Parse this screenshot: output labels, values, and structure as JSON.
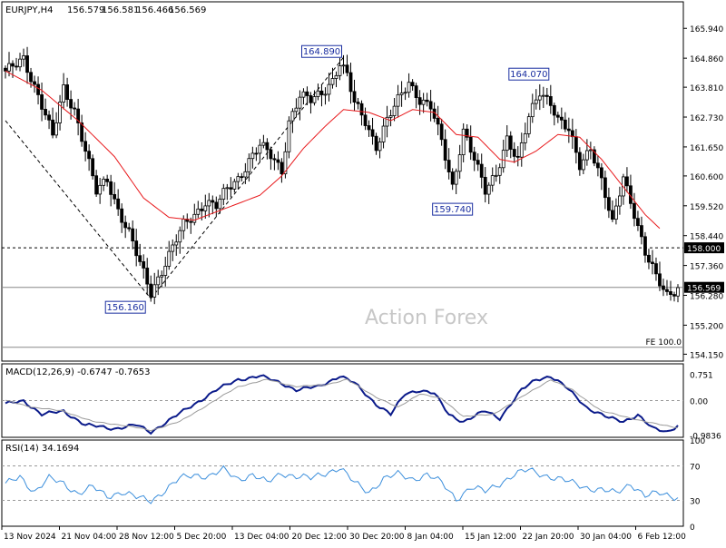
{
  "header": {
    "symbol": "EURJPY,H4",
    "open": "156.579",
    "high": "156.581",
    "low": "156.466",
    "close": "156.569"
  },
  "watermark": "Action Forex",
  "colors": {
    "candle": "#000000",
    "ma": "#e8191c",
    "macd": "#0a1a8a",
    "signal": "#9a9a9a",
    "rsi": "#3c8fdc",
    "grid": "#999999",
    "price_label_bg": "#ffffff"
  },
  "chart_data": [
    {
      "type": "candlestick",
      "panel": "price",
      "ylim": [
        153.9,
        166.9
      ],
      "y_ticks": [
        "165.940",
        "164.860",
        "163.810",
        "162.730",
        "161.650",
        "160.600",
        "159.520",
        "158.440",
        "157.360",
        "156.280",
        "155.200",
        "154.150"
      ],
      "y_tick_values": [
        165.94,
        164.86,
        163.81,
        162.73,
        161.65,
        160.6,
        159.52,
        158.44,
        157.36,
        156.28,
        155.2,
        154.15
      ],
      "x_labels": [
        "13 Nov 2024",
        "21 Nov 04:00",
        "28 Nov 12:00",
        "5 Dec 20:00",
        "13 Dec 04:00",
        "20 Dec 12:00",
        "30 Dec 20:00",
        "8 Jan 04:00",
        "15 Jan 12:00",
        "22 Jan 20:00",
        "30 Jan 04:00",
        "6 Feb 12:00"
      ],
      "close_path_anchors": [
        [
          0,
          164.3
        ],
        [
          5,
          164.9
        ],
        [
          9,
          163.5
        ],
        [
          13,
          162.0
        ],
        [
          16,
          163.8
        ],
        [
          19,
          163.0
        ],
        [
          22,
          161.5
        ],
        [
          25,
          160.0
        ],
        [
          28,
          160.5
        ],
        [
          31,
          159.4
        ],
        [
          34,
          158.5
        ],
        [
          37,
          157.4
        ],
        [
          40,
          156.4
        ],
        [
          43,
          157.2
        ],
        [
          46,
          158.0
        ],
        [
          49,
          158.8
        ],
        [
          52,
          159.2
        ],
        [
          55,
          159.7
        ],
        [
          58,
          159.5
        ],
        [
          61,
          160.1
        ],
        [
          64,
          160.5
        ],
        [
          67,
          161.2
        ],
        [
          70,
          161.7
        ],
        [
          73,
          161.3
        ],
        [
          76,
          160.8
        ],
        [
          78,
          162.6
        ],
        [
          81,
          163.5
        ],
        [
          84,
          163.3
        ],
        [
          87,
          163.6
        ],
        [
          90,
          164.1
        ],
        [
          92,
          164.7
        ],
        [
          94,
          164.2
        ],
        [
          96,
          163.2
        ],
        [
          99,
          162.6
        ],
        [
          102,
          161.7
        ],
        [
          105,
          162.6
        ],
        [
          108,
          163.3
        ],
        [
          111,
          164.0
        ],
        [
          114,
          163.4
        ],
        [
          117,
          163.1
        ],
        [
          120,
          161.8
        ],
        [
          123,
          160.2
        ],
        [
          126,
          162.3
        ],
        [
          129,
          161.2
        ],
        [
          132,
          160.0
        ],
        [
          135,
          160.7
        ],
        [
          138,
          162.0
        ],
        [
          141,
          161.1
        ],
        [
          144,
          162.7
        ],
        [
          147,
          163.7
        ],
        [
          150,
          163.3
        ],
        [
          152,
          162.6
        ],
        [
          155,
          162.2
        ],
        [
          158,
          161.0
        ],
        [
          161,
          161.7
        ],
        [
          164,
          160.4
        ],
        [
          167,
          158.8
        ],
        [
          170,
          160.6
        ],
        [
          173,
          159.3
        ],
        [
          176,
          157.8
        ],
        [
          179,
          156.9
        ],
        [
          182,
          156.3
        ],
        [
          185,
          156.6
        ]
      ],
      "moving_average_anchors": [
        [
          0,
          164.4
        ],
        [
          10,
          163.7
        ],
        [
          20,
          162.6
        ],
        [
          30,
          161.3
        ],
        [
          38,
          159.8
        ],
        [
          45,
          159.1
        ],
        [
          52,
          159.0
        ],
        [
          60,
          159.4
        ],
        [
          70,
          159.9
        ],
        [
          76,
          160.6
        ],
        [
          82,
          161.6
        ],
        [
          88,
          162.4
        ],
        [
          93,
          163.0
        ],
        [
          100,
          162.9
        ],
        [
          106,
          162.6
        ],
        [
          112,
          163.0
        ],
        [
          118,
          162.9
        ],
        [
          124,
          162.1
        ],
        [
          130,
          162.0
        ],
        [
          136,
          161.2
        ],
        [
          140,
          161.1
        ],
        [
          146,
          161.5
        ],
        [
          152,
          162.1
        ],
        [
          158,
          162.0
        ],
        [
          164,
          161.2
        ],
        [
          170,
          160.2
        ],
        [
          176,
          159.2
        ],
        [
          180,
          158.7
        ]
      ],
      "annotations": [
        {
          "label": "164.890",
          "bar": 93,
          "price": 164.89,
          "position": "left"
        },
        {
          "label": "164.070",
          "bar": 150,
          "price": 164.07,
          "position": "left"
        },
        {
          "label": "159.740",
          "bar": 123,
          "price": 159.74,
          "position": "below"
        },
        {
          "label": "156.160",
          "bar": 40,
          "price": 156.16,
          "position": "below-left"
        }
      ],
      "horizontal_lines": [
        {
          "price": 158.0,
          "style": "dashed",
          "label": "158.000"
        },
        {
          "price": 156.569,
          "style": "solid",
          "label": "156.569"
        },
        {
          "price": 154.4,
          "style": "solid",
          "label": "FE 100.0"
        }
      ],
      "trendlines": [
        {
          "from": [
            0,
            162.6
          ],
          "to": [
            40,
            156.16
          ]
        },
        {
          "from": [
            40,
            156.16
          ],
          "to": [
            93,
            164.89
          ]
        }
      ]
    },
    {
      "type": "line",
      "panel": "macd",
      "title": "MACD(12,26,9) -0.6747 -0.7653",
      "ylim": [
        -1.05,
        1.05
      ],
      "y_ticks": [
        "0.751",
        "0.00",
        "-0.9836"
      ],
      "y_tick_values": [
        0.751,
        0.0,
        -0.9836
      ],
      "series": [
        {
          "name": "MACD",
          "anchors": [
            [
              0,
              -0.1
            ],
            [
              5,
              0.0
            ],
            [
              10,
              -0.4
            ],
            [
              16,
              -0.3
            ],
            [
              22,
              -0.7
            ],
            [
              30,
              -0.8
            ],
            [
              36,
              -0.7
            ],
            [
              40,
              -0.9
            ],
            [
              46,
              -0.5
            ],
            [
              52,
              -0.1
            ],
            [
              58,
              0.3
            ],
            [
              64,
              0.6
            ],
            [
              70,
              0.7
            ],
            [
              76,
              0.5
            ],
            [
              80,
              0.3
            ],
            [
              86,
              0.4
            ],
            [
              92,
              0.7
            ],
            [
              96,
              0.5
            ],
            [
              102,
              -0.1
            ],
            [
              106,
              -0.4
            ],
            [
              110,
              0.2
            ],
            [
              114,
              0.3
            ],
            [
              118,
              0.2
            ],
            [
              122,
              -0.4
            ],
            [
              126,
              -0.6
            ],
            [
              132,
              -0.3
            ],
            [
              136,
              -0.5
            ],
            [
              142,
              0.3
            ],
            [
              146,
              0.6
            ],
            [
              150,
              0.7
            ],
            [
              154,
              0.4
            ],
            [
              160,
              -0.2
            ],
            [
              166,
              -0.5
            ],
            [
              170,
              -0.6
            ],
            [
              174,
              -0.4
            ],
            [
              178,
              -0.8
            ],
            [
              182,
              -0.9
            ],
            [
              185,
              -0.7
            ]
          ]
        },
        {
          "name": "Signal",
          "anchors": [
            [
              0,
              0.0
            ],
            [
              8,
              -0.2
            ],
            [
              16,
              -0.3
            ],
            [
              24,
              -0.6
            ],
            [
              32,
              -0.7
            ],
            [
              40,
              -0.85
            ],
            [
              48,
              -0.6
            ],
            [
              56,
              -0.1
            ],
            [
              64,
              0.4
            ],
            [
              72,
              0.6
            ],
            [
              80,
              0.4
            ],
            [
              88,
              0.45
            ],
            [
              94,
              0.6
            ],
            [
              102,
              0.1
            ],
            [
              108,
              -0.2
            ],
            [
              114,
              0.2
            ],
            [
              120,
              0.05
            ],
            [
              126,
              -0.45
            ],
            [
              134,
              -0.4
            ],
            [
              142,
              0.1
            ],
            [
              150,
              0.6
            ],
            [
              156,
              0.3
            ],
            [
              164,
              -0.3
            ],
            [
              172,
              -0.5
            ],
            [
              178,
              -0.65
            ],
            [
              185,
              -0.77
            ]
          ]
        }
      ]
    },
    {
      "type": "line",
      "panel": "rsi",
      "title": "RSI(14) 34.1694",
      "ylim": [
        0,
        100
      ],
      "y_ticks": [
        "100",
        "70",
        "30",
        "0"
      ],
      "y_tick_values": [
        100,
        70,
        30,
        0
      ],
      "levels": [
        70,
        30
      ],
      "series": [
        {
          "name": "RSI(14)",
          "anchors": [
            [
              0,
              48
            ],
            [
              4,
              58
            ],
            [
              8,
              40
            ],
            [
              12,
              55
            ],
            [
              16,
              50
            ],
            [
              20,
              38
            ],
            [
              24,
              45
            ],
            [
              28,
              35
            ],
            [
              32,
              40
            ],
            [
              36,
              33
            ],
            [
              40,
              30
            ],
            [
              44,
              42
            ],
            [
              48,
              55
            ],
            [
              52,
              60
            ],
            [
              56,
              58
            ],
            [
              60,
              65
            ],
            [
              64,
              55
            ],
            [
              68,
              60
            ],
            [
              72,
              50
            ],
            [
              76,
              62
            ],
            [
              80,
              58
            ],
            [
              84,
              55
            ],
            [
              88,
              62
            ],
            [
              92,
              68
            ],
            [
              96,
              50
            ],
            [
              100,
              40
            ],
            [
              104,
              55
            ],
            [
              108,
              60
            ],
            [
              112,
              55
            ],
            [
              116,
              60
            ],
            [
              120,
              50
            ],
            [
              124,
              32
            ],
            [
              128,
              45
            ],
            [
              132,
              40
            ],
            [
              136,
              50
            ],
            [
              140,
              60
            ],
            [
              144,
              65
            ],
            [
              148,
              60
            ],
            [
              152,
              55
            ],
            [
              156,
              50
            ],
            [
              160,
              45
            ],
            [
              164,
              42
            ],
            [
              168,
              38
            ],
            [
              172,
              50
            ],
            [
              176,
              35
            ],
            [
              180,
              38
            ],
            [
              185,
              34
            ]
          ]
        }
      ]
    }
  ]
}
